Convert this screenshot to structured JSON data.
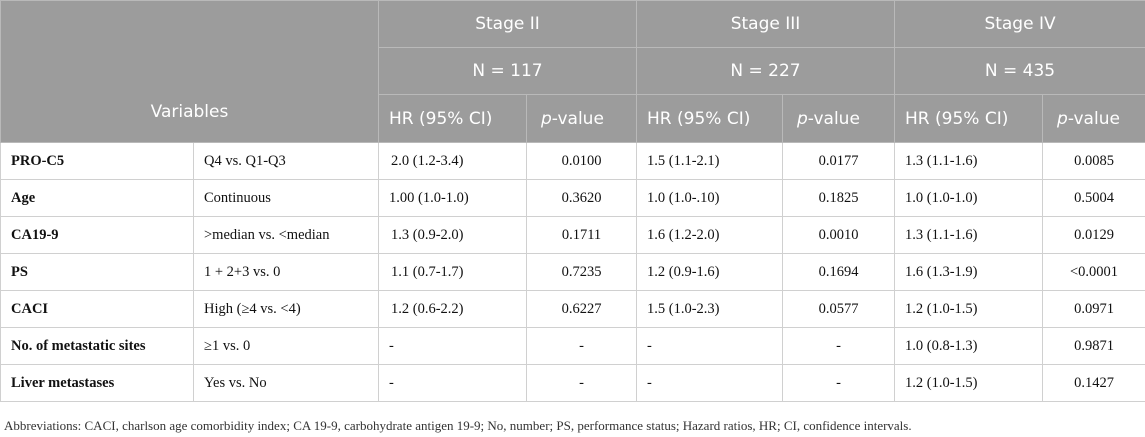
{
  "header": {
    "variables_label": "Variables",
    "stages": [
      {
        "name": "Stage II",
        "n": "N = 117"
      },
      {
        "name": "Stage III",
        "n": "N = 227"
      },
      {
        "name": "Stage IV",
        "n": "N = 435"
      }
    ],
    "hr_label": "HR (95% CI)",
    "p_italic": "p",
    "p_suffix": "-value"
  },
  "rows": [
    {
      "variable": "PRO-C5",
      "comparison": "Q4 vs. Q1-Q3",
      "s2_hr": "2.0 (1.2-3.4)",
      "s2_p": "0.0100",
      "s3_hr": "1.5 (1.1-2.1)",
      "s3_p": "0.0177",
      "s4_hr": "1.3 (1.1-1.6)",
      "s4_p": "0.0085"
    },
    {
      "variable": "Age",
      "comparison": "Continuous",
      "s2_hr": "1.00 (1.0-1.0)",
      "s2_p": "0.3620",
      "s3_hr": "1.0 (1.0-.10)",
      "s3_p": "0.1825",
      "s4_hr": "1.0 (1.0-1.0)",
      "s4_p": "0.5004"
    },
    {
      "variable": "CA19-9",
      "comparison": ">median vs. <median",
      "s2_hr": "1.3 (0.9-2.0)",
      "s2_p": "0.1711",
      "s3_hr": "1.6 (1.2-2.0)",
      "s3_p": "0.0010",
      "s4_hr": "1.3 (1.1-1.6)",
      "s4_p": "0.0129"
    },
    {
      "variable": "PS",
      "comparison": "1 + 2+3 vs. 0",
      "s2_hr": "1.1 (0.7-1.7)",
      "s2_p": "0.7235",
      "s3_hr": "1.2 (0.9-1.6)",
      "s3_p": "0.1694",
      "s4_hr": "1.6 (1.3-1.9)",
      "s4_p": "<0.0001"
    },
    {
      "variable": "CACI",
      "comparison": "High (≥4 vs. <4)",
      "s2_hr": "1.2 (0.6-2.2)",
      "s2_p": "0.6227",
      "s3_hr": "1.5 (1.0-2.3)",
      "s3_p": "0.0577",
      "s4_hr": "1.2 (1.0-1.5)",
      "s4_p": "0.0971"
    },
    {
      "variable": "No. of metastatic sites",
      "comparison": "≥1 vs. 0",
      "s2_hr": "-",
      "s2_p": "-",
      "s3_hr": "-",
      "s3_p": "-",
      "s4_hr": "1.0 (0.8-1.3)",
      "s4_p": "0.9871"
    },
    {
      "variable": "Liver metastases",
      "comparison": "Yes vs. No",
      "s2_hr": "-",
      "s2_p": "-",
      "s3_hr": "-",
      "s3_p": "-",
      "s4_hr": "1.2 (1.0-1.5)",
      "s4_p": "0.1427"
    }
  ],
  "footnote": "Abbreviations: CACI, charlson age comorbidity index; CA 19-9, carbohydrate antigen 19-9; No, number; PS, performance status; Hazard ratios, HR; CI, confidence intervals."
}
